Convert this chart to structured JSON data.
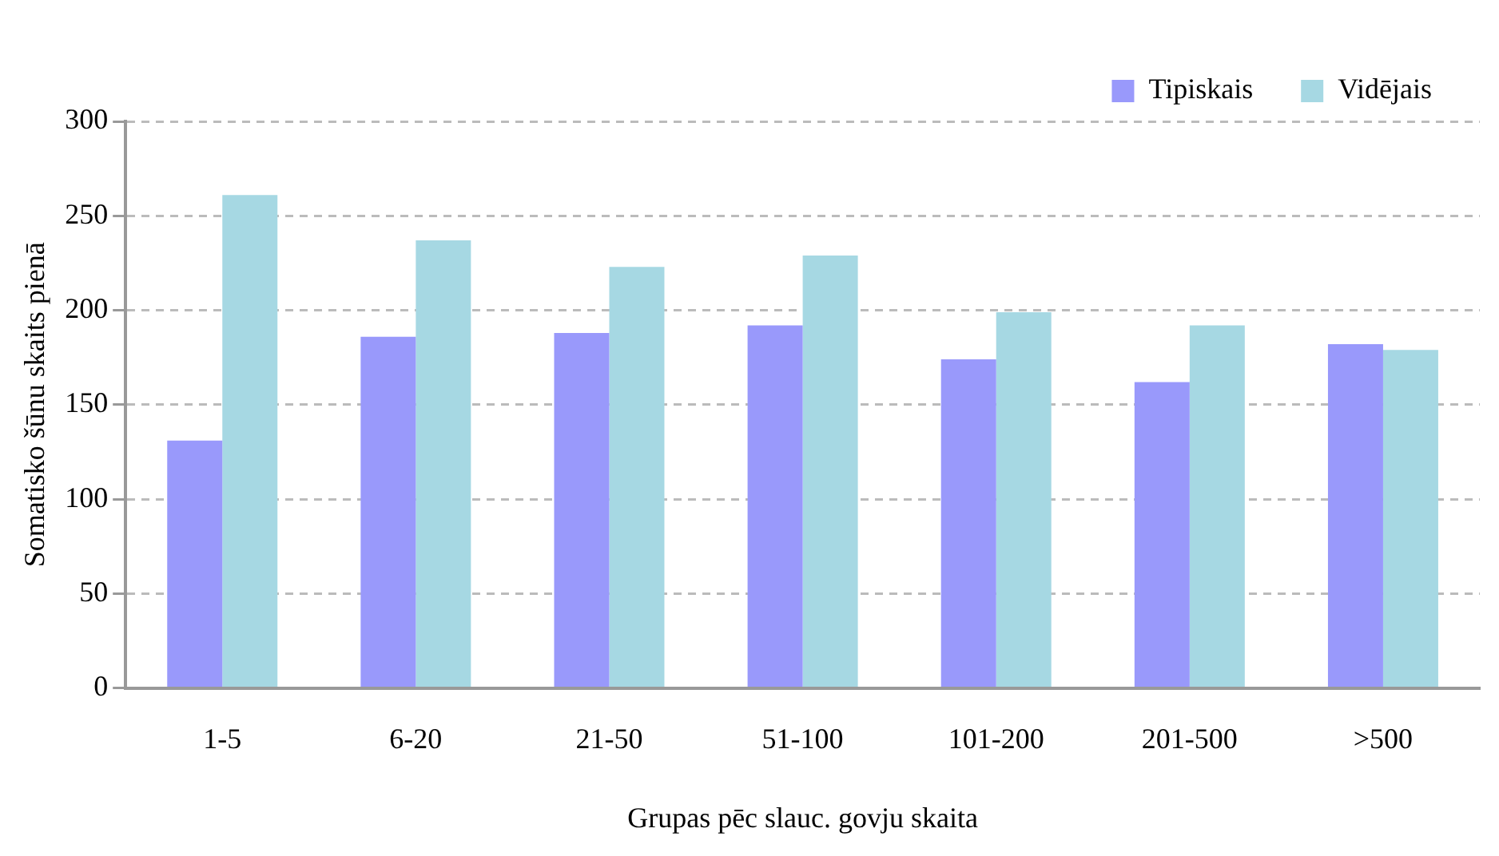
{
  "chart_data": {
    "type": "bar",
    "xlabel": "Grupas pēc slauc. govju skaita",
    "ylabel": "Somatisko šūnu skaits pienā",
    "categories": [
      "1-5",
      "6-20",
      "21-50",
      "51-100",
      "101-200",
      "201-500",
      ">500"
    ],
    "series": [
      {
        "name": "Tipiskais",
        "color": "#9999fb",
        "values": [
          131,
          186,
          188,
          192,
          174,
          162,
          182
        ]
      },
      {
        "name": "Vidējais",
        "color": "#a6d8e3",
        "values": [
          261,
          237,
          223,
          229,
          199,
          192,
          179
        ]
      }
    ],
    "ylim": [
      0,
      300
    ],
    "yticks": [
      0,
      50,
      100,
      150,
      200,
      250,
      300
    ],
    "grid": "y",
    "legend": "top right"
  }
}
